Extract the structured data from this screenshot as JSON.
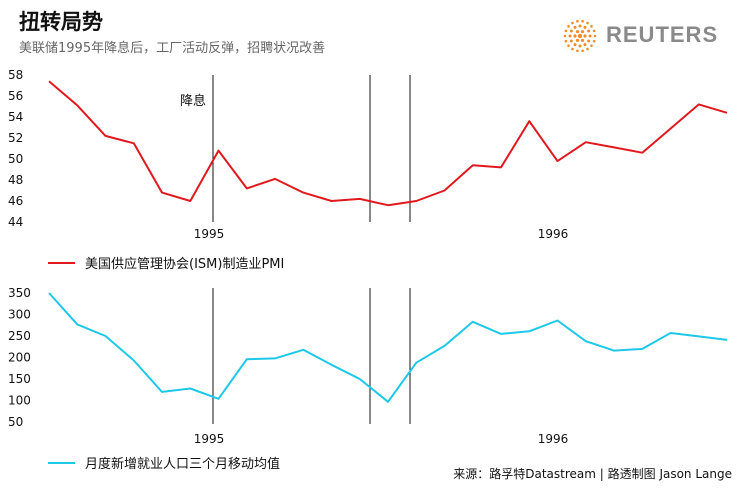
{
  "title": "扭转局势",
  "subtitle": "美联储1995年降息后，工厂活动反弹，招聘状况改善",
  "brand": {
    "name": "REUTERS",
    "logo_color": "#f28c28",
    "text_color": "#8a8a8a"
  },
  "source": "来源：路孚特Datastream | 路透制图 Jason Lange",
  "chart_data": [
    {
      "type": "line",
      "series": [
        {
          "name": "美国供应管理协会(ISM)制造业PMI",
          "color": "#e0191e",
          "values": [
            57.4,
            55.1,
            52.2,
            51.5,
            46.8,
            46.0,
            50.8,
            47.2,
            48.1,
            46.8,
            46.0,
            46.2,
            45.6,
            46.0,
            47.0,
            49.4,
            49.2,
            53.6,
            49.8,
            51.6,
            51.1,
            50.6,
            52.9,
            55.2,
            54.4
          ]
        }
      ],
      "x_labels": [
        "1995",
        "1996"
      ],
      "y_ticks": [
        44,
        46,
        48,
        50,
        52,
        54,
        56,
        58
      ],
      "ylim": [
        44,
        58
      ],
      "annotations": [
        {
          "text": "降息"
        }
      ]
    },
    {
      "type": "line",
      "series": [
        {
          "name": "月度新增就业人口三个月移动均值",
          "color": "#1ec8e8",
          "values": [
            350,
            277,
            250,
            193,
            120,
            128,
            104,
            196,
            198,
            218,
            183,
            150,
            97,
            188,
            227,
            283,
            255,
            261,
            286,
            238,
            216,
            220,
            257,
            249,
            241
          ]
        }
      ],
      "x_labels": [
        "1995",
        "1996"
      ],
      "y_ticks": [
        50,
        100,
        150,
        200,
        250,
        300,
        350
      ],
      "ylim": [
        50,
        350
      ]
    }
  ]
}
